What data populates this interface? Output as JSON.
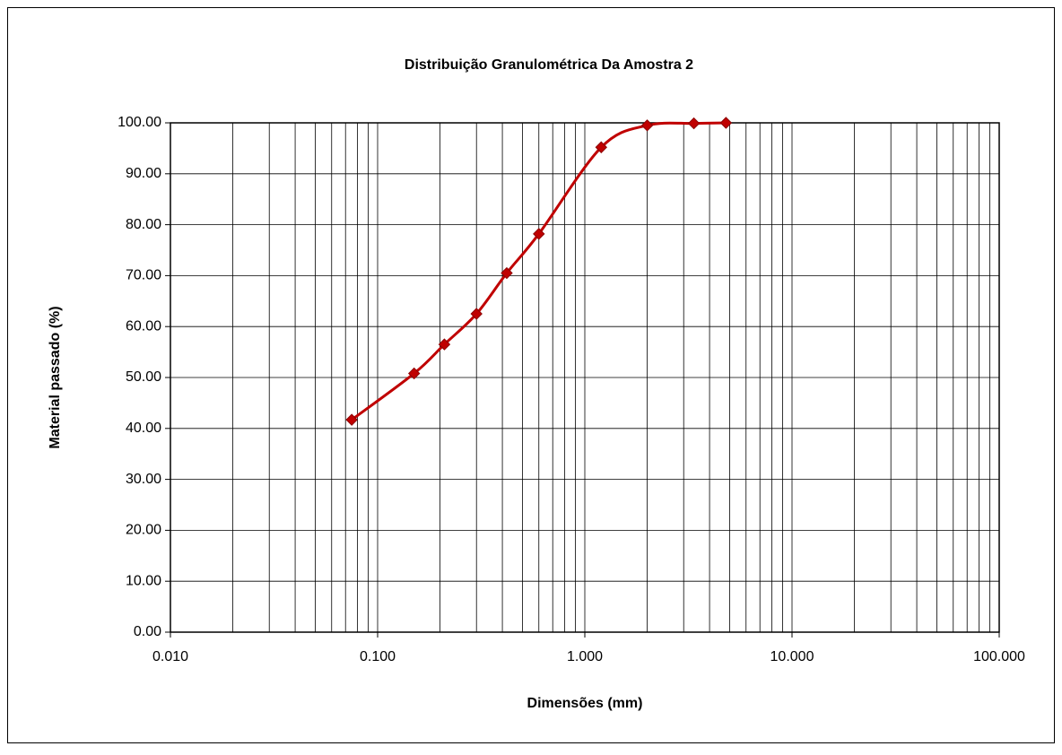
{
  "chart_data": {
    "type": "line",
    "title": "Distribuição Granulométrica Da Amostra 2",
    "xlabel": "Dimensões (mm)",
    "ylabel": "Material passado (%)",
    "x": [
      0.075,
      0.15,
      0.21,
      0.3,
      0.42,
      0.6,
      1.2,
      2.0,
      3.36,
      4.8
    ],
    "series": [
      {
        "name": "Amostra 2",
        "color": "#c00000",
        "values": [
          41.7,
          50.8,
          56.5,
          62.5,
          70.5,
          78.2,
          95.2,
          99.5,
          99.9,
          100
        ]
      }
    ],
    "xscale": "log",
    "xlim": [
      0.01,
      100
    ],
    "xticks": [
      {
        "value": 0.01,
        "label": "0.010"
      },
      {
        "value": 0.1,
        "label": "0.100"
      },
      {
        "value": 1,
        "label": "1.000"
      },
      {
        "value": 10,
        "label": "10.000"
      },
      {
        "value": 100,
        "label": "100.000"
      }
    ],
    "ylim": [
      0,
      100
    ],
    "yticks": [
      {
        "value": 0,
        "label": "0.00"
      },
      {
        "value": 10,
        "label": "10.00"
      },
      {
        "value": 20,
        "label": "20.00"
      },
      {
        "value": 30,
        "label": "30.00"
      },
      {
        "value": 40,
        "label": "40.00"
      },
      {
        "value": 50,
        "label": "50.00"
      },
      {
        "value": 60,
        "label": "60.00"
      },
      {
        "value": 70,
        "label": "70.00"
      },
      {
        "value": 80,
        "label": "80.00"
      },
      {
        "value": 90,
        "label": "90.00"
      },
      {
        "value": 100,
        "label": "100.00"
      }
    ],
    "grid": true,
    "minor_grid": true,
    "smooth": true
  }
}
